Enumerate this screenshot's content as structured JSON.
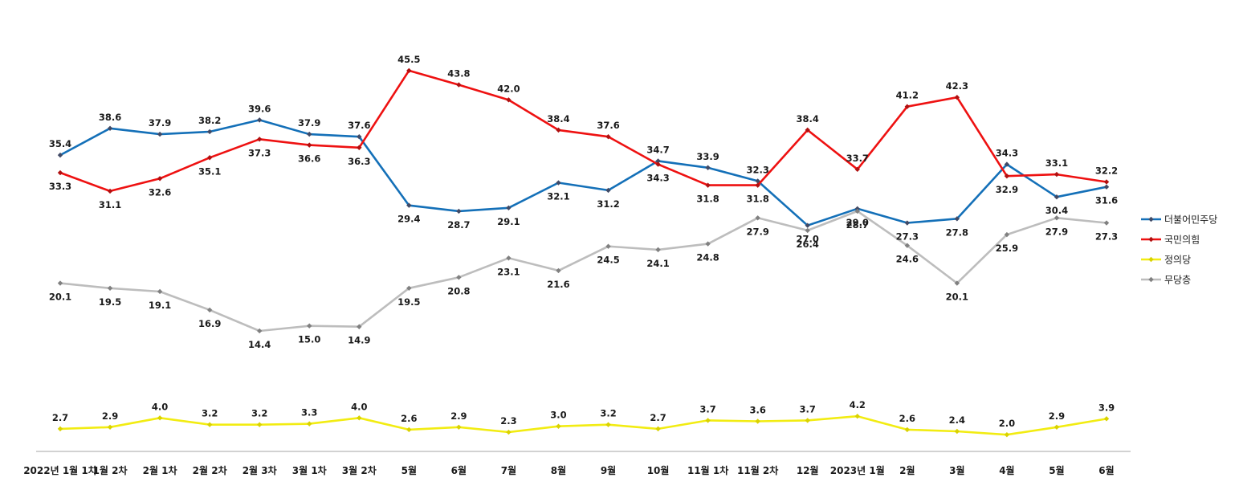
{
  "chart_data": {
    "type": "line",
    "categories": [
      "2022년 1월 1차",
      "1월 2차",
      "2월 1차",
      "2월 2차",
      "2월 3차",
      "3월 1차",
      "3월 2차",
      "5월",
      "6월",
      "7월",
      "8월",
      "9월",
      "10월",
      "11월 1차",
      "11월 2차",
      "12월",
      "2023년 1월",
      "2월",
      "3월",
      "4월",
      "5월",
      "6월"
    ],
    "ylim": [
      0,
      50
    ],
    "grid": false,
    "legend_position": "right",
    "series": [
      {
        "name": "더불어민주당",
        "color": "#1470b8",
        "values": [
          35.4,
          38.6,
          37.9,
          38.2,
          39.6,
          37.9,
          37.6,
          29.4,
          28.7,
          29.1,
          32.1,
          31.2,
          34.7,
          33.9,
          32.3,
          27.0,
          29.0,
          27.3,
          27.8,
          34.3,
          30.4,
          31.6
        ]
      },
      {
        "name": "국민의힘",
        "color": "#ee1111",
        "values": [
          33.3,
          31.1,
          32.6,
          35.1,
          37.3,
          36.6,
          36.3,
          45.5,
          43.8,
          42.0,
          38.4,
          37.6,
          34.3,
          31.8,
          31.8,
          38.4,
          33.7,
          41.2,
          42.3,
          32.9,
          33.1,
          32.2
        ]
      },
      {
        "name": "정의당",
        "color": "#f2ec12",
        "values": [
          2.7,
          2.9,
          4.0,
          3.2,
          3.2,
          3.3,
          4.0,
          2.6,
          2.9,
          2.3,
          3.0,
          3.2,
          2.7,
          3.7,
          3.6,
          3.7,
          4.2,
          2.6,
          2.4,
          2.0,
          2.9,
          3.9
        ]
      },
      {
        "name": "무당층",
        "color": "#bdbdbd",
        "values": [
          20.1,
          19.5,
          19.1,
          16.9,
          14.4,
          15.0,
          14.9,
          19.5,
          20.8,
          23.1,
          21.6,
          24.5,
          24.1,
          24.8,
          27.9,
          26.4,
          28.7,
          24.6,
          20.1,
          25.9,
          27.9,
          27.3
        ]
      }
    ]
  }
}
